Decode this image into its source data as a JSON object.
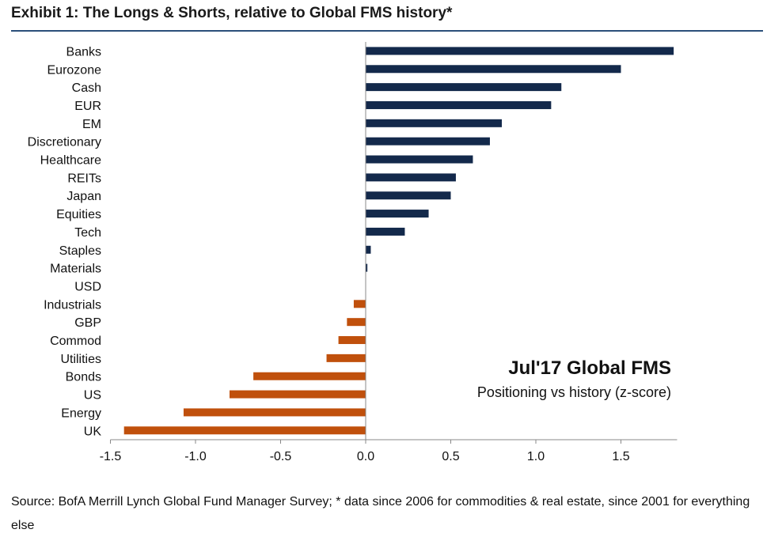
{
  "header": {
    "title": "Exhibit 1: The Longs & Shorts, relative to Global FMS history*"
  },
  "annotation": {
    "title": "Jul'17 Global FMS",
    "subtitle": "Positioning vs history (z-score)"
  },
  "footer": {
    "source": "Source: BofA Merrill Lynch Global Fund Manager Survey; * data since 2006 for commodities & real estate, since 2001 for everything else"
  },
  "colors": {
    "positive": "#13294b",
    "negative": "#c0500c",
    "axis": "#888888",
    "title_rule": "#2b4f7a"
  },
  "chart_data": {
    "type": "bar",
    "orientation": "horizontal",
    "title": "Exhibit 1: The Longs & Shorts, relative to Global FMS history*",
    "xlabel": "",
    "ylabel": "",
    "xlim": [
      -1.5,
      1.83
    ],
    "xticks": [
      -1.5,
      -1.0,
      -0.5,
      0.0,
      0.5,
      1.0,
      1.5
    ],
    "xtick_labels": [
      "-1.5",
      "-1.0",
      "-0.5",
      "0.0",
      "0.5",
      "1.0",
      "1.5"
    ],
    "grid": false,
    "categories": [
      "Banks",
      "Eurozone",
      "Cash",
      "EUR",
      "EM",
      "Discretionary",
      "Healthcare",
      "REITs",
      "Japan",
      "Equities",
      "Tech",
      "Staples",
      "Materials",
      "USD",
      "Industrials",
      "GBP",
      "Commod",
      "Utilities",
      "Bonds",
      "US",
      "Energy",
      "UK"
    ],
    "values": [
      1.81,
      1.5,
      1.15,
      1.09,
      0.8,
      0.73,
      0.63,
      0.53,
      0.5,
      0.37,
      0.23,
      0.03,
      0.01,
      0.0,
      -0.07,
      -0.11,
      -0.16,
      -0.23,
      -0.66,
      -0.8,
      -1.07,
      -1.42
    ]
  }
}
